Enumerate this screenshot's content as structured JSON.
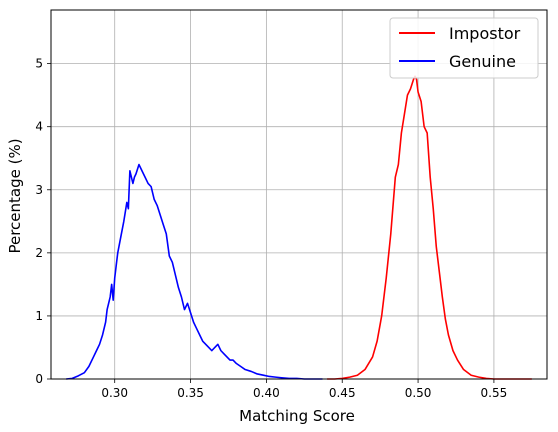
{
  "chart_data": {
    "type": "line",
    "xlabel": "Matching Score",
    "ylabel": "Percentage (%)",
    "xlim": [
      0.258,
      0.585
    ],
    "ylim": [
      0,
      5.85
    ],
    "x_ticks": [
      0.3,
      0.35,
      0.4,
      0.45,
      0.5,
      0.55
    ],
    "x_tick_labels": [
      "0.30",
      "0.35",
      "0.40",
      "0.45",
      "0.50",
      "0.55"
    ],
    "y_ticks": [
      0,
      1,
      2,
      3,
      4,
      5
    ],
    "y_tick_labels": [
      "0",
      "1",
      "2",
      "3",
      "4",
      "5"
    ],
    "grid": true,
    "legend_position": "top-right",
    "series": [
      {
        "name": "Impostor",
        "color": "#ff0000",
        "x": [
          0.44,
          0.445,
          0.45,
          0.455,
          0.46,
          0.465,
          0.47,
          0.473,
          0.476,
          0.479,
          0.482,
          0.485,
          0.487,
          0.489,
          0.491,
          0.493,
          0.495,
          0.497,
          0.498,
          0.499,
          0.5,
          0.502,
          0.504,
          0.506,
          0.508,
          0.51,
          0.512,
          0.514,
          0.516,
          0.518,
          0.52,
          0.523,
          0.526,
          0.53,
          0.535,
          0.54,
          0.545,
          0.55,
          0.56,
          0.575
        ],
        "values": [
          0.0,
          0.0,
          0.01,
          0.03,
          0.06,
          0.15,
          0.35,
          0.6,
          1.0,
          1.6,
          2.3,
          3.2,
          3.4,
          3.9,
          4.2,
          4.5,
          4.6,
          4.75,
          4.8,
          4.75,
          4.55,
          4.4,
          4.0,
          3.9,
          3.2,
          2.7,
          2.1,
          1.7,
          1.3,
          0.95,
          0.7,
          0.45,
          0.3,
          0.15,
          0.06,
          0.03,
          0.01,
          0.0,
          0.0,
          0.0
        ]
      },
      {
        "name": "Genuine",
        "color": "#0000ff",
        "x": [
          0.268,
          0.272,
          0.276,
          0.28,
          0.283,
          0.286,
          0.288,
          0.29,
          0.292,
          0.294,
          0.295,
          0.296,
          0.297,
          0.298,
          0.299,
          0.3,
          0.301,
          0.302,
          0.304,
          0.306,
          0.308,
          0.309,
          0.31,
          0.312,
          0.313,
          0.314,
          0.316,
          0.318,
          0.32,
          0.322,
          0.324,
          0.326,
          0.328,
          0.33,
          0.332,
          0.334,
          0.336,
          0.338,
          0.34,
          0.342,
          0.344,
          0.346,
          0.348,
          0.35,
          0.352,
          0.354,
          0.356,
          0.358,
          0.36,
          0.362,
          0.364,
          0.366,
          0.368,
          0.37,
          0.372,
          0.374,
          0.376,
          0.378,
          0.38,
          0.383,
          0.386,
          0.39,
          0.394,
          0.398,
          0.402,
          0.406,
          0.41,
          0.415,
          0.42,
          0.425,
          0.43,
          0.437
        ],
        "values": [
          0.0,
          0.01,
          0.05,
          0.1,
          0.2,
          0.35,
          0.45,
          0.55,
          0.7,
          0.9,
          1.1,
          1.2,
          1.3,
          1.5,
          1.25,
          1.6,
          1.8,
          2.0,
          2.25,
          2.5,
          2.8,
          2.7,
          3.3,
          3.1,
          3.2,
          3.25,
          3.4,
          3.3,
          3.2,
          3.1,
          3.05,
          2.85,
          2.75,
          2.6,
          2.45,
          2.3,
          1.95,
          1.85,
          1.65,
          1.45,
          1.3,
          1.1,
          1.2,
          1.05,
          0.9,
          0.8,
          0.7,
          0.6,
          0.55,
          0.5,
          0.45,
          0.5,
          0.55,
          0.45,
          0.4,
          0.35,
          0.3,
          0.3,
          0.25,
          0.2,
          0.15,
          0.12,
          0.08,
          0.06,
          0.04,
          0.03,
          0.02,
          0.01,
          0.01,
          0.0,
          0.0,
          0.0
        ]
      }
    ]
  }
}
